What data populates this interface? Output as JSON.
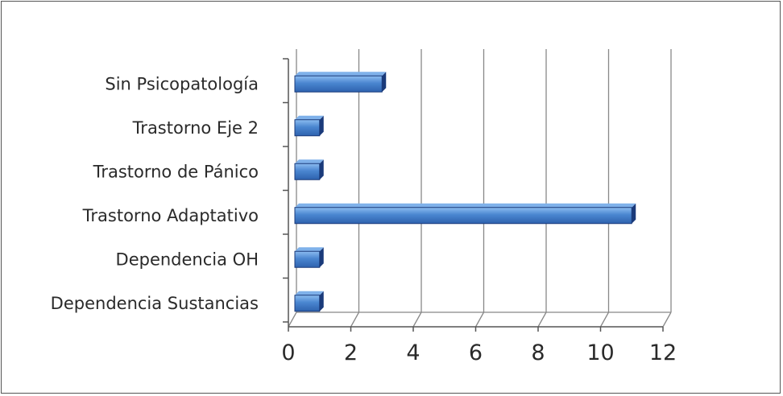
{
  "chart_data": {
    "type": "bar",
    "orientation": "horizontal",
    "style": "3d",
    "categories": [
      "Sin Psicopatología",
      "Trastorno Eje 2",
      "Trastorno de Pánico",
      "Trastorno Adaptativo",
      "Dependencia OH",
      "Dependencia Sustancias"
    ],
    "values": [
      3,
      1,
      1,
      11,
      1,
      1
    ],
    "xlim": [
      0,
      12
    ],
    "xticks": [
      "0",
      "2",
      "4",
      "6",
      "8",
      "10",
      "12"
    ],
    "grid": true,
    "legend": "none",
    "colors": {
      "bar_front": "#4a86d0",
      "bar_highlight": "#7fb1ea",
      "bar_shadow": "#1a3a7a",
      "grid": "#888888"
    }
  }
}
